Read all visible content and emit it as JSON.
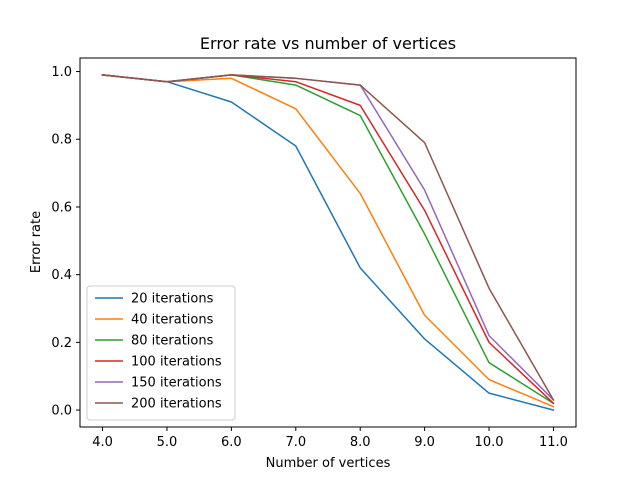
{
  "chart_data": {
    "type": "line",
    "title": "Error rate vs number of vertices",
    "xlabel": "Number of vertices",
    "ylabel": "Error rate",
    "x": [
      4.0,
      5.0,
      6.0,
      7.0,
      8.0,
      9.0,
      10.0,
      11.0
    ],
    "xticks": [
      "4.0",
      "5.0",
      "6.0",
      "7.0",
      "8.0",
      "9.0",
      "10.0",
      "11.0"
    ],
    "yticks": [
      "0.0",
      "0.2",
      "0.4",
      "0.6",
      "0.8",
      "1.0"
    ],
    "xlim": [
      3.65,
      11.35
    ],
    "ylim": [
      -0.05,
      1.04
    ],
    "grid": false,
    "legend_position": "lower-left",
    "series": [
      {
        "name": "20 iterations",
        "color": "#1f77b4",
        "values": [
          0.99,
          0.97,
          0.91,
          0.78,
          0.42,
          0.21,
          0.05,
          0.0
        ]
      },
      {
        "name": "40 iterations",
        "color": "#ff7f0e",
        "values": [
          0.99,
          0.97,
          0.98,
          0.89,
          0.64,
          0.28,
          0.09,
          0.01
        ]
      },
      {
        "name": "80 iterations",
        "color": "#2ca02c",
        "values": [
          0.99,
          0.97,
          0.99,
          0.96,
          0.87,
          0.52,
          0.14,
          0.02
        ]
      },
      {
        "name": "100 iterations",
        "color": "#d62728",
        "values": [
          0.99,
          0.97,
          0.99,
          0.97,
          0.9,
          0.59,
          0.2,
          0.02
        ]
      },
      {
        "name": "150 iterations",
        "color": "#9467bd",
        "values": [
          0.99,
          0.97,
          0.99,
          0.98,
          0.96,
          0.65,
          0.22,
          0.03
        ]
      },
      {
        "name": "200 iterations",
        "color": "#8c564b",
        "values": [
          0.99,
          0.97,
          0.99,
          0.98,
          0.96,
          0.79,
          0.36,
          0.03
        ]
      }
    ]
  }
}
